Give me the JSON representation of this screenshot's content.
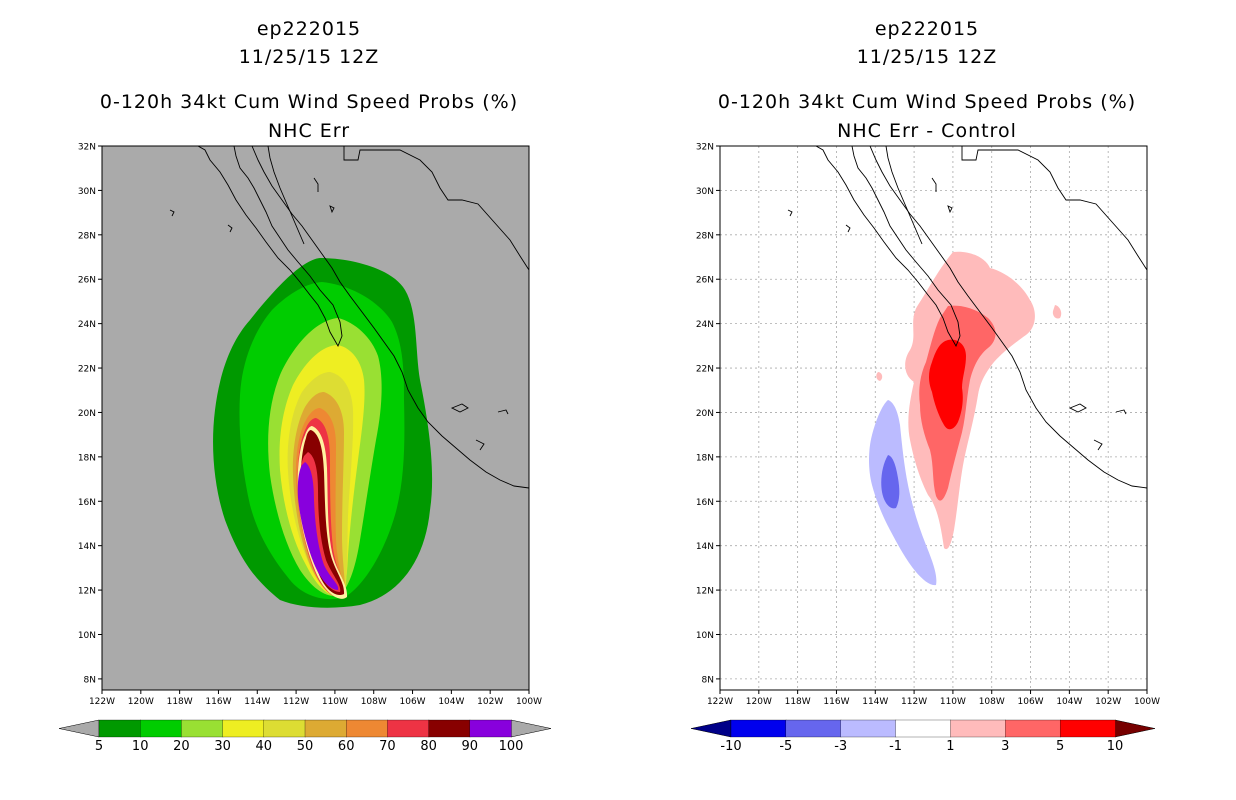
{
  "left": {
    "storm_id": "ep222015",
    "datetime": "11/25/15 12Z",
    "title": "0-120h 34kt Cum Wind Speed Probs (%)",
    "subtitle": "NHC Err",
    "background_color": "#aaaaaa",
    "colorbar": {
      "colors": [
        "#009900",
        "#00cc00",
        "#99e033",
        "#eeee22",
        "#dddd33",
        "#ddaa33",
        "#ee8833",
        "#ee3344",
        "#880000",
        "#8800dd"
      ],
      "labels": [
        "5",
        "10",
        "20",
        "30",
        "40",
        "50",
        "60",
        "70",
        "80",
        "90",
        "100"
      ],
      "under_color": "#aaaaaa",
      "over_color": "#aaaaaa"
    }
  },
  "right": {
    "storm_id": "ep222015",
    "datetime": "11/25/15 12Z",
    "title": "0-120h 34kt Cum Wind Speed Probs (%)",
    "subtitle": "NHC Err - Control",
    "background_color": "#ffffff",
    "colorbar": {
      "colors": [
        "#0000ee",
        "#6666ee",
        "#bbbbff",
        "#ffffff",
        "#ffbbbb",
        "#ff6666",
        "#ff0000"
      ],
      "labels": [
        "-10",
        "-5",
        "-3",
        "-1",
        "1",
        "3",
        "5",
        "10"
      ],
      "under_color": "#000088",
      "over_color": "#770000"
    }
  },
  "map": {
    "lat_labels": [
      "32N",
      "30N",
      "28N",
      "26N",
      "24N",
      "22N",
      "20N",
      "18N",
      "16N",
      "14N",
      "12N",
      "10N",
      "8N"
    ],
    "lon_labels": [
      "122W",
      "120W",
      "118W",
      "116W",
      "114W",
      "112W",
      "110W",
      "108W",
      "106W",
      "104W",
      "102W",
      "100W"
    ]
  }
}
